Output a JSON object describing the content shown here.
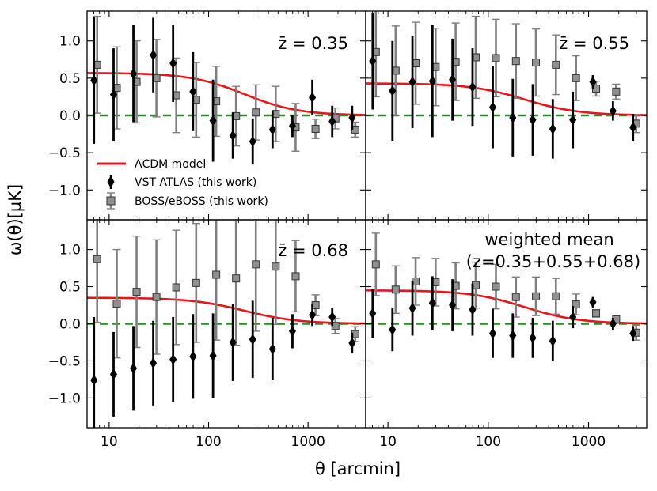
{
  "figure": {
    "ylabel": "ω(θ)[μK]",
    "xlabel": "θ [arcmin]"
  },
  "x_ticks": [
    10,
    100,
    1000
  ],
  "x_tick_labels": [
    "10",
    "100",
    "1000"
  ],
  "y_ticks": [
    -1.0,
    -0.5,
    0.0,
    0.5,
    1.0
  ],
  "y_tick_labels": [
    "−1.0",
    "−0.5",
    "0.0",
    "0.5",
    "1.0"
  ],
  "legend": {
    "model": "ΛCDM model",
    "vst": "VST ATLAS (this work)",
    "boss": "BOSS/eBOSS (this work)"
  },
  "colors": {
    "model": "#e8141a",
    "zero": "#2a8a2a",
    "vst": "#000000",
    "boss": "#7f7f7f",
    "boss_fill": "#909090"
  },
  "chart_data": [
    {
      "type": "scatter",
      "panel": "top-left",
      "annotation": "z̄ = 0.35",
      "xlim": [
        6,
        3800
      ],
      "ylim": [
        -1.4,
        1.4
      ],
      "xscale": "log",
      "model": {
        "amplitude": 0.57,
        "theta_c": 230
      },
      "series": [
        {
          "name": "VST ATLAS (this work)",
          "x": [
            7.3,
            11.5,
            18.2,
            28.8,
            45.6,
            72.3,
            115,
            182,
            288,
            456,
            723,
            1146,
            1816,
            2878
          ],
          "y": [
            0.47,
            0.28,
            0.56,
            0.81,
            0.7,
            0.32,
            -0.07,
            -0.27,
            -0.35,
            -0.19,
            -0.14,
            0.24,
            -0.08,
            -0.03
          ],
          "err": [
            0.85,
            0.62,
            0.65,
            0.5,
            0.52,
            0.53,
            0.55,
            0.31,
            0.31,
            0.25,
            0.15,
            0.24,
            0.21,
            0.16
          ]
        },
        {
          "name": "BOSS/eBOSS (this work)",
          "x": [
            7.3,
            11.5,
            18.2,
            28.8,
            45.6,
            72.3,
            115,
            182,
            288,
            456,
            723,
            1146,
            1816,
            2878
          ],
          "y": [
            0.68,
            0.37,
            0.45,
            0.5,
            0.27,
            0.21,
            0.19,
            -0.01,
            0.04,
            0.02,
            -0.16,
            -0.18,
            -0.04,
            -0.19
          ],
          "err": [
            0.65,
            0.55,
            0.55,
            0.52,
            0.5,
            0.5,
            0.47,
            0.4,
            0.37,
            0.37,
            0.32,
            0.13,
            0.14,
            0.1
          ]
        }
      ]
    },
    {
      "type": "scatter",
      "panel": "top-right",
      "annotation": "z̄ = 0.55",
      "xlim": [
        6,
        3800
      ],
      "ylim": [
        -1.4,
        1.4
      ],
      "xscale": "log",
      "model": {
        "amplitude": 0.43,
        "theta_c": 230
      },
      "series": [
        {
          "name": "VST ATLAS (this work)",
          "x": [
            7.3,
            11.5,
            18.2,
            28.8,
            45.6,
            72.3,
            115,
            182,
            288,
            456,
            723,
            1146,
            1816,
            2878
          ],
          "y": [
            0.73,
            0.33,
            0.45,
            0.46,
            0.48,
            0.38,
            0.11,
            -0.03,
            -0.06,
            -0.18,
            -0.06,
            0.45,
            0.06,
            -0.16
          ],
          "err": [
            0.65,
            0.67,
            0.62,
            0.75,
            0.55,
            0.52,
            0.55,
            0.52,
            0.48,
            0.4,
            0.38,
            0.09,
            0.13,
            0.18
          ]
        },
        {
          "name": "BOSS/eBOSS (this work)",
          "x": [
            7.3,
            11.5,
            18.2,
            28.8,
            45.6,
            72.3,
            115,
            182,
            288,
            456,
            723,
            1146,
            1816,
            2878
          ],
          "y": [
            0.85,
            0.6,
            0.7,
            0.65,
            0.72,
            0.78,
            0.77,
            0.73,
            0.71,
            0.68,
            0.5,
            0.36,
            0.32,
            -0.11
          ],
          "err": [
            0.6,
            0.6,
            0.55,
            0.52,
            0.52,
            0.55,
            0.52,
            0.5,
            0.45,
            0.4,
            0.3,
            0.1,
            0.1,
            0.12
          ]
        }
      ]
    },
    {
      "type": "scatter",
      "panel": "bottom-left",
      "annotation": "z̄ = 0.68",
      "xlim": [
        6,
        3800
      ],
      "ylim": [
        -1.4,
        1.4
      ],
      "xscale": "log",
      "model": {
        "amplitude": 0.35,
        "theta_c": 230
      },
      "series": [
        {
          "name": "VST ATLAS (this work)",
          "x": [
            7.3,
            11.5,
            18.2,
            28.8,
            45.6,
            72.3,
            115,
            182,
            288,
            456,
            723,
            1146,
            1816,
            2878
          ],
          "y": [
            -0.76,
            -0.68,
            -0.6,
            -0.53,
            -0.48,
            -0.44,
            -0.43,
            -0.25,
            -0.21,
            -0.34,
            -0.1,
            0.12,
            0.09,
            -0.26
          ],
          "err": [
            0.85,
            0.57,
            0.57,
            0.57,
            0.57,
            0.57,
            0.57,
            0.52,
            0.52,
            0.42,
            0.23,
            0.15,
            0.12,
            0.14
          ]
        },
        {
          "name": "BOSS/eBOSS (this work)",
          "x": [
            7.3,
            11.5,
            18.2,
            28.8,
            45.6,
            72.3,
            115,
            182,
            288,
            456,
            723,
            1146,
            1816,
            2878
          ],
          "y": [
            0.87,
            0.27,
            0.43,
            0.36,
            0.49,
            0.55,
            0.66,
            0.61,
            0.8,
            0.77,
            0.64,
            0.25,
            -0.03,
            -0.14
          ],
          "err": [
            0.85,
            0.73,
            0.75,
            0.77,
            0.77,
            0.8,
            0.88,
            0.9,
            0.9,
            0.78,
            0.48,
            0.14,
            0.1,
            0.1
          ]
        }
      ]
    },
    {
      "type": "scatter",
      "panel": "bottom-right",
      "annotation": "weighted mean",
      "annotation2": "(z=0.35+0.55+0.68)",
      "xlim": [
        6,
        3800
      ],
      "ylim": [
        -1.4,
        1.4
      ],
      "xscale": "log",
      "model": {
        "amplitude": 0.45,
        "theta_c": 230
      },
      "series": [
        {
          "name": "VST ATLAS (this work)",
          "x": [
            7.3,
            11.5,
            18.2,
            28.8,
            45.6,
            72.3,
            115,
            182,
            288,
            456,
            723,
            1146,
            1816,
            2878
          ],
          "y": [
            0.14,
            -0.08,
            0.21,
            0.28,
            0.25,
            0.19,
            -0.13,
            -0.16,
            -0.19,
            -0.23,
            0.09,
            0.29,
            0.0,
            -0.13
          ],
          "err": [
            0.33,
            0.29,
            0.37,
            0.36,
            0.35,
            0.35,
            0.33,
            0.3,
            0.27,
            0.27,
            0.15,
            0.07,
            0.08,
            0.1
          ]
        },
        {
          "name": "BOSS/eBOSS (this work)",
          "x": [
            7.3,
            11.5,
            18.2,
            28.8,
            45.6,
            72.3,
            115,
            182,
            288,
            456,
            723,
            1146,
            1816,
            2878
          ],
          "y": [
            0.8,
            0.46,
            0.57,
            0.56,
            0.51,
            0.52,
            0.5,
            0.36,
            0.37,
            0.37,
            0.26,
            0.14,
            0.06,
            -0.12
          ],
          "err": [
            0.42,
            0.32,
            0.32,
            0.32,
            0.31,
            0.31,
            0.3,
            0.27,
            0.26,
            0.24,
            0.14,
            0.05,
            0.05,
            0.1
          ]
        }
      ]
    }
  ]
}
